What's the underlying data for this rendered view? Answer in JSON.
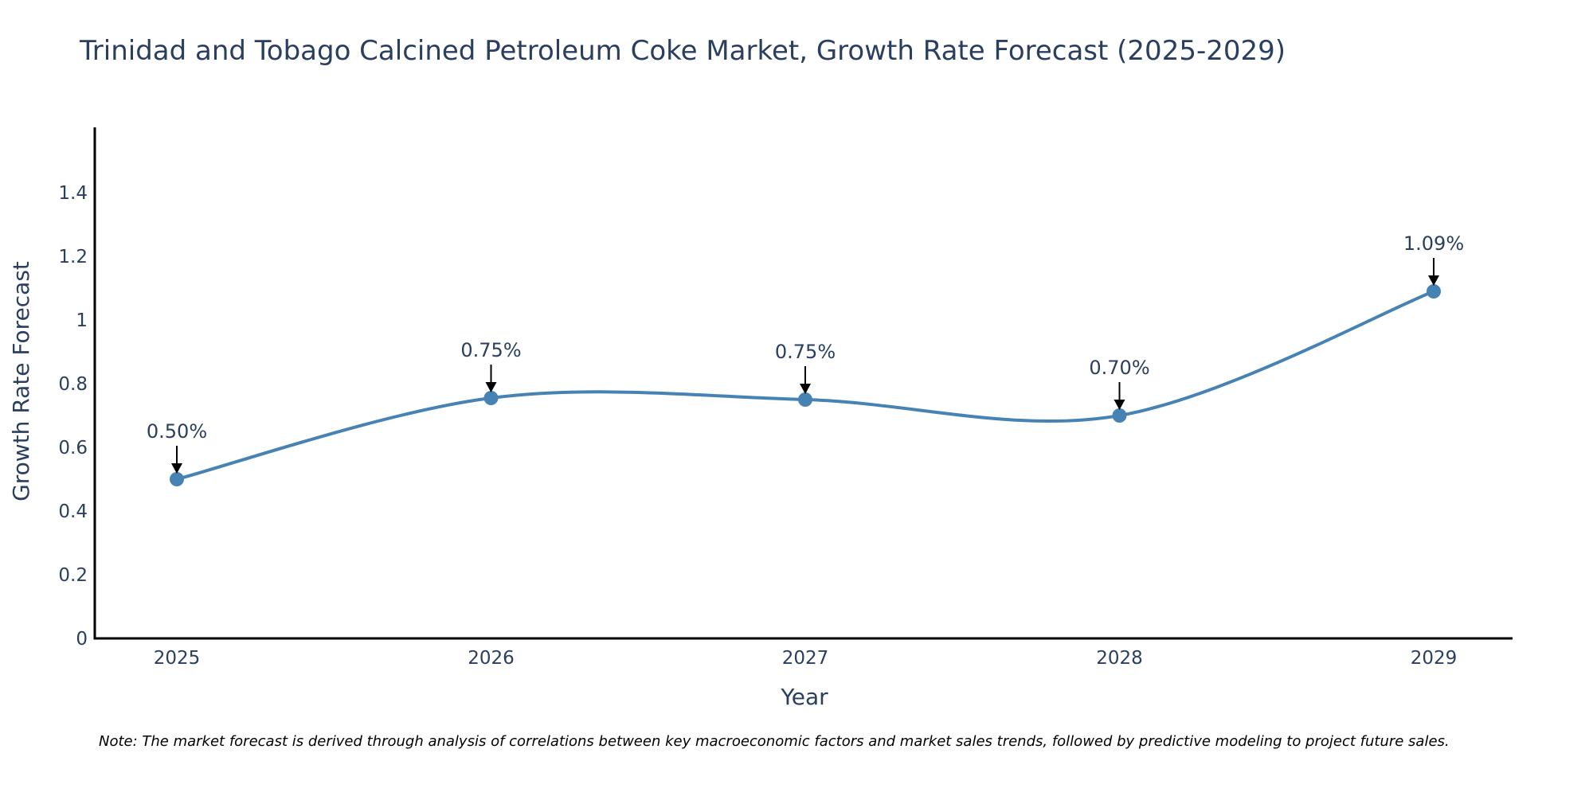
{
  "chart_data": {
    "type": "line",
    "title": "Trinidad and Tobago Calcined Petroleum Coke Market, Growth Rate Forecast (2025-2029)",
    "xlabel": "Year",
    "ylabel": "Growth Rate Forecast",
    "categories": [
      "2025",
      "2026",
      "2027",
      "2028",
      "2029"
    ],
    "values": [
      0.5,
      0.755,
      0.75,
      0.7,
      1.09
    ],
    "data_labels": [
      "0.50%",
      "0.75%",
      "0.75%",
      "0.70%",
      "1.09%"
    ],
    "yticks": [
      0,
      0.2,
      0.4,
      0.6,
      0.8,
      1,
      1.2,
      1.4
    ],
    "ytick_labels": [
      "0",
      "0.2",
      "0.4",
      "0.6",
      "0.8",
      "1",
      "1.2",
      "1.4"
    ],
    "ylim": [
      0,
      1.59
    ],
    "grid": false,
    "line_color": "#4682b4",
    "line_shape": "spline",
    "note": "Note: The market forecast is derived through analysis of correlations between key macroeconomic factors and market sales trends, followed by predictive modeling to project future sales."
  }
}
